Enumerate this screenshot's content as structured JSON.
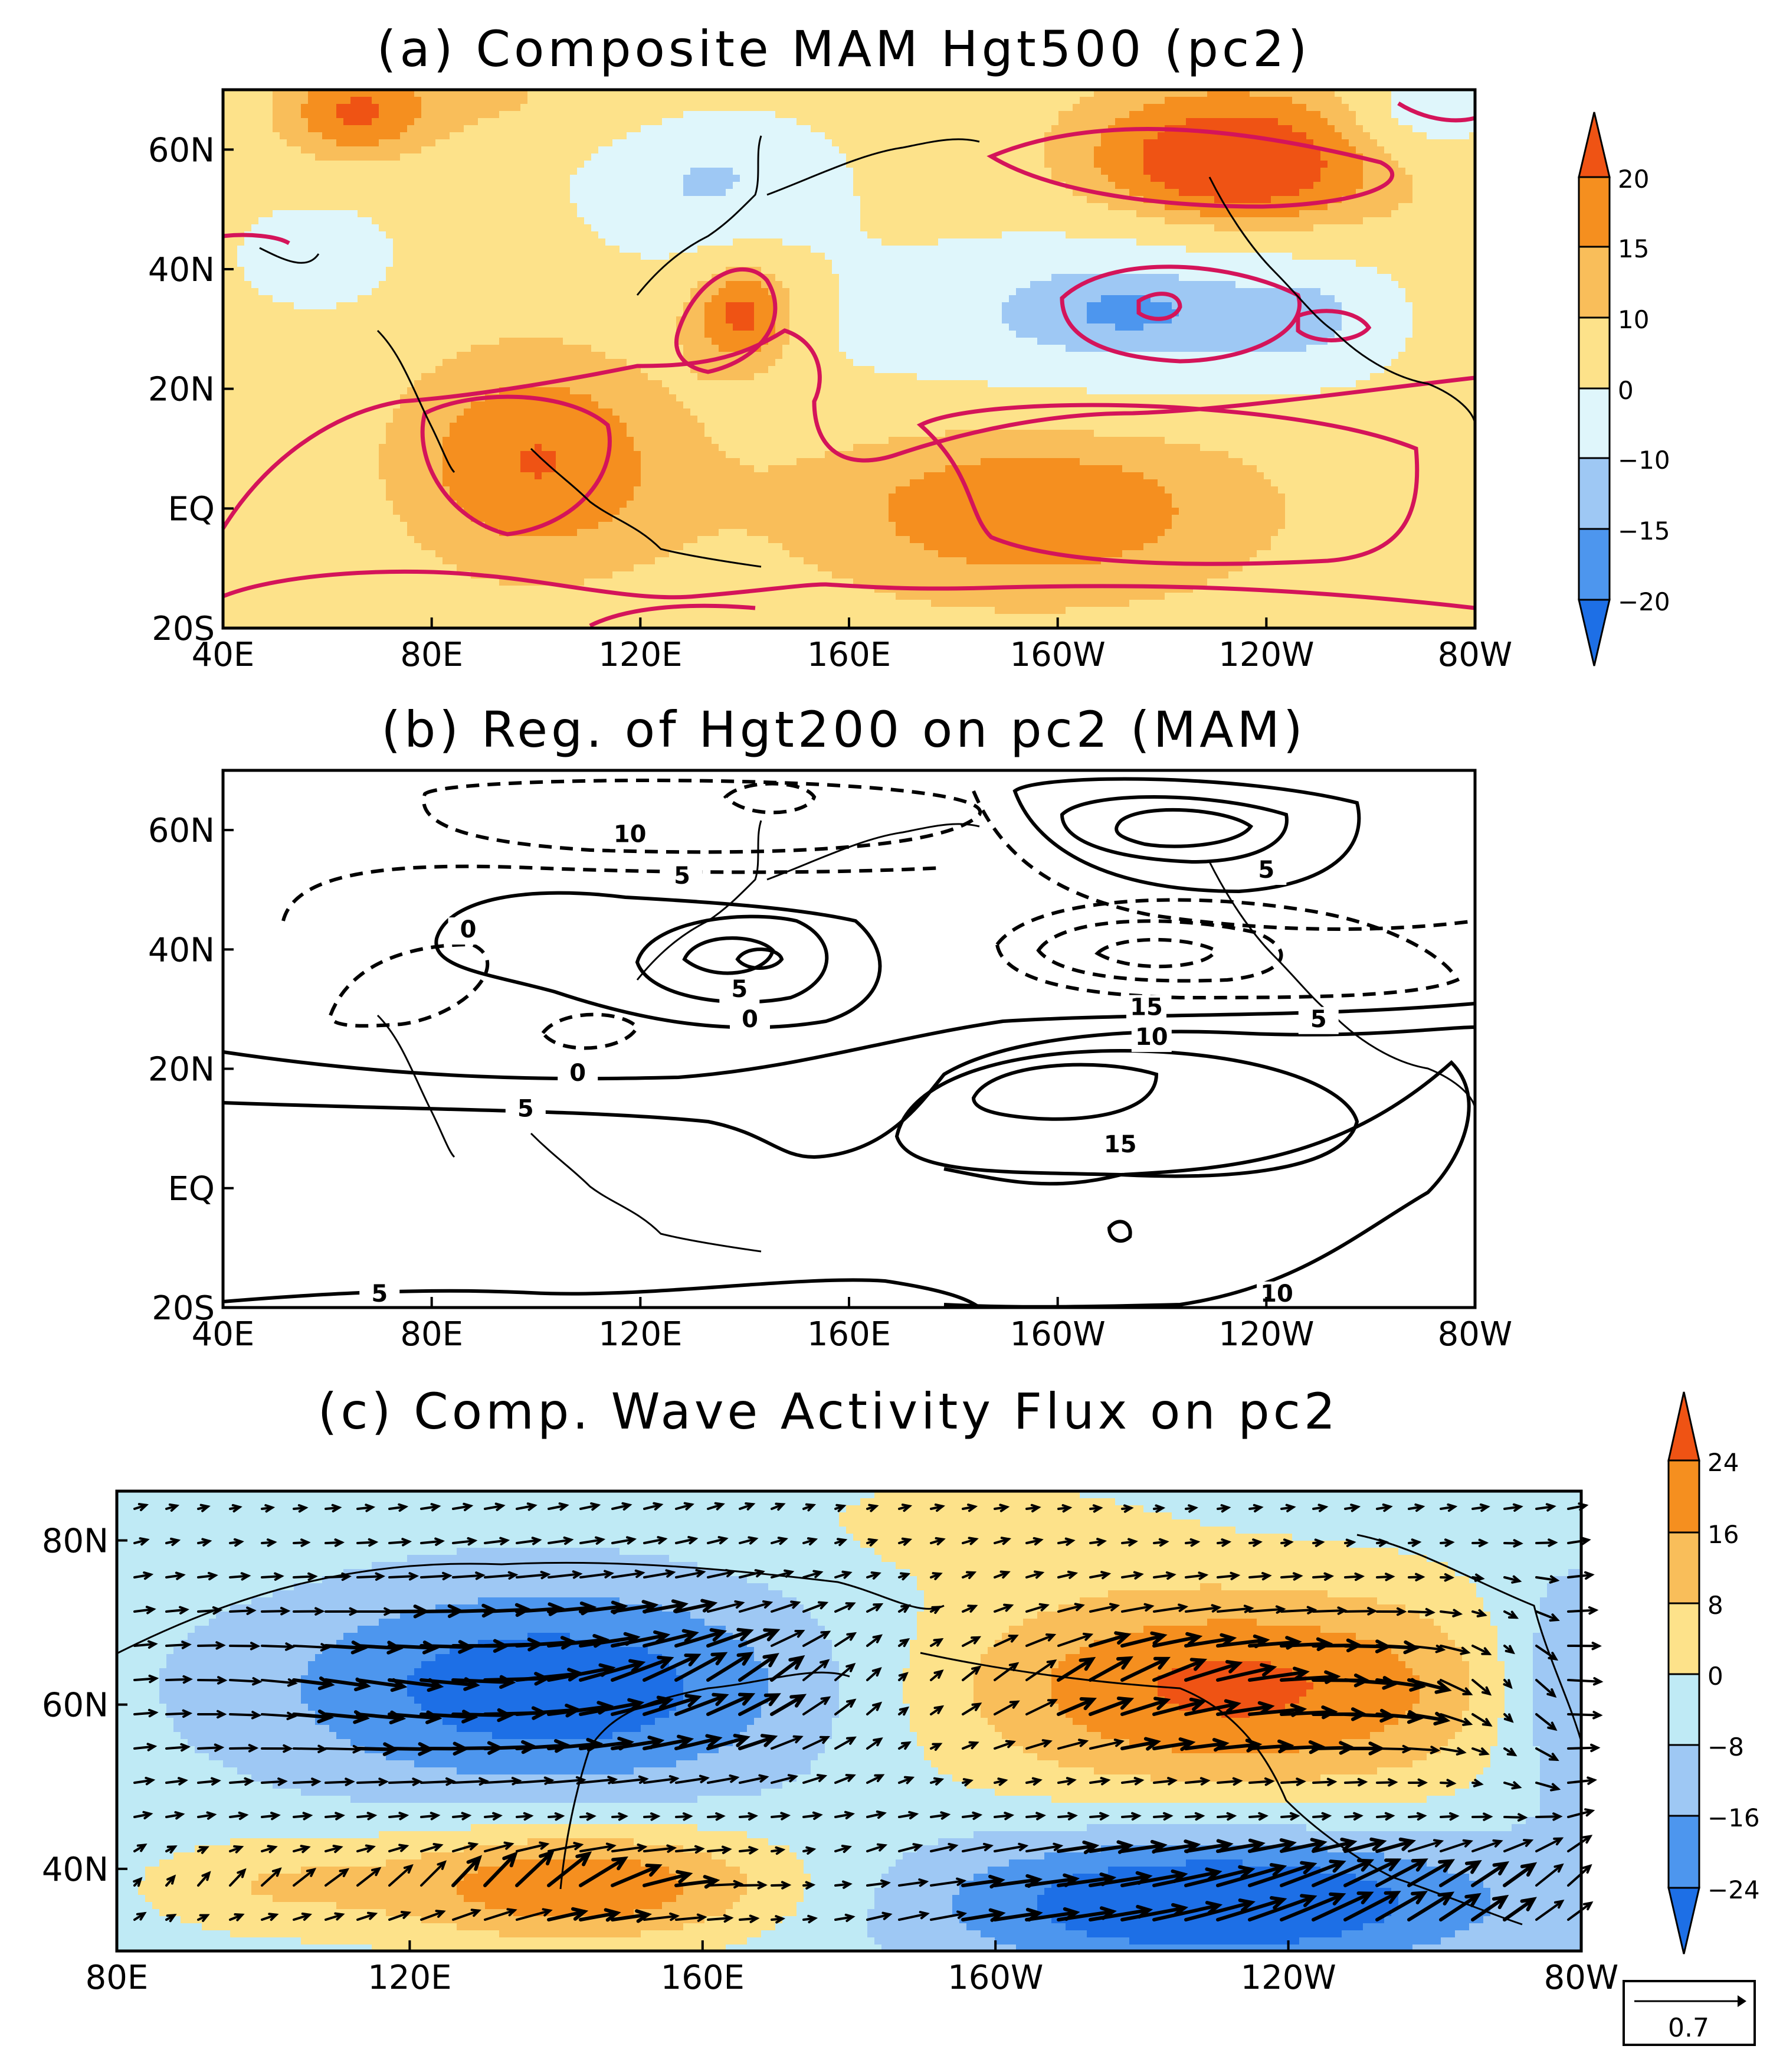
{
  "colors": {
    "neg_dark": "#1d6fe6",
    "neg_mid": "#4d96ee",
    "neg_light": "#9ec8f4",
    "neg_faint": "#dff6fb",
    "pos_faint": "#fde28a",
    "pos_light": "#f9be5a",
    "pos_mid": "#f58f1f",
    "pos_dark": "#ef5314",
    "contour_a": "#d4145a",
    "ocean_c": "#bfeaf5"
  },
  "chart_data": [
    {
      "id": "a",
      "type": "heatmap",
      "title": "(a) Composite MAM Hgt500 (pc2)",
      "x_tick_labels": [
        "40E",
        "80E",
        "120E",
        "160E",
        "160W",
        "120W",
        "80W"
      ],
      "y_tick_labels": [
        "60N",
        "40N",
        "20N",
        "EQ",
        "20S"
      ],
      "xlim_deg_east": [
        40,
        280
      ],
      "ylim_deg": [
        -20,
        70
      ],
      "colorbar_labels": [
        "20",
        "15",
        "10",
        "0",
        "−10",
        "−15",
        "−20"
      ],
      "levels": [
        -20,
        -15,
        -10,
        0,
        10,
        15,
        20
      ],
      "anomaly_centers": [
        {
          "lon": 133,
          "lat": 55,
          "value": -16,
          "sx": 18,
          "sy": 10
        },
        {
          "lon": 233,
          "lat": 57,
          "value": 22,
          "sx": 22,
          "sy": 10
        },
        {
          "lon": 217,
          "lat": 34,
          "value": -20,
          "sx": 22,
          "sy": 10
        },
        {
          "lon": 250,
          "lat": 32,
          "value": -12,
          "sx": 12,
          "sy": 8
        },
        {
          "lon": 140,
          "lat": 33,
          "value": 20,
          "sx": 8,
          "sy": 7
        },
        {
          "lon": 100,
          "lat": 8,
          "value": 15,
          "sx": 20,
          "sy": 14
        },
        {
          "lon": 195,
          "lat": 0,
          "value": 14,
          "sx": 34,
          "sy": 12
        },
        {
          "lon": 58,
          "lat": 42,
          "value": -11,
          "sx": 12,
          "sy": 7
        },
        {
          "lon": 65,
          "lat": 66,
          "value": 13,
          "sx": 10,
          "sy": 6
        },
        {
          "lon": 272,
          "lat": 67,
          "value": -15,
          "sx": 9,
          "sy": 5
        },
        {
          "lon": 175,
          "lat": 30,
          "value": -8,
          "sx": 25,
          "sy": 10
        },
        {
          "lon": 100,
          "lat": 68,
          "value": 6,
          "sx": 30,
          "sy": 6
        }
      ],
      "base_value": 5,
      "significance_contours": "magenta"
    },
    {
      "id": "b",
      "type": "contour",
      "title": "(b) Reg. of Hgt200 on pc2 (MAM)",
      "x_tick_labels": [
        "40E",
        "80E",
        "120E",
        "160E",
        "160W",
        "120W",
        "80W"
      ],
      "y_tick_labels": [
        "60N",
        "40N",
        "20N",
        "EQ",
        "20S"
      ],
      "xlim_deg_east": [
        40,
        280
      ],
      "ylim_deg": [
        -20,
        70
      ],
      "contour_labels": [
        {
          "text": "10",
          "lon": 118,
          "lat": 58
        },
        {
          "text": "5",
          "lon": 128,
          "lat": 51
        },
        {
          "text": "0",
          "lon": 87,
          "lat": 42
        },
        {
          "text": "5",
          "lon": 139,
          "lat": 32
        },
        {
          "text": "0",
          "lon": 141,
          "lat": 27
        },
        {
          "text": "0",
          "lon": 108,
          "lat": 18
        },
        {
          "text": "5",
          "lon": 98,
          "lat": 12
        },
        {
          "text": "5",
          "lon": 240,
          "lat": 52
        },
        {
          "text": "15",
          "lon": 217,
          "lat": 29
        },
        {
          "text": "10",
          "lon": 218,
          "lat": 24
        },
        {
          "text": "5",
          "lon": 250,
          "lat": 27
        },
        {
          "text": "15",
          "lon": 212,
          "lat": 6
        },
        {
          "text": "10",
          "lon": 242,
          "lat": -19
        },
        {
          "text": "5",
          "lon": 70,
          "lat": -19
        }
      ]
    },
    {
      "id": "c",
      "type": "heatmap",
      "title": "(c) Comp. Wave Activity Flux on pc2",
      "x_tick_labels": [
        "80E",
        "120E",
        "160E",
        "160W",
        "120W",
        "80W"
      ],
      "y_tick_labels": [
        "80N",
        "60N",
        "40N"
      ],
      "xlim_deg_east": [
        80,
        280
      ],
      "ylim_deg": [
        30,
        86
      ],
      "colorbar_labels": [
        "24",
        "16",
        "8",
        "0",
        "−8",
        "−16",
        "−24"
      ],
      "levels": [
        -24,
        -16,
        -8,
        0,
        8,
        16,
        24
      ],
      "reference_vector_label": "0.7",
      "anomaly_centers": [
        {
          "lon": 140,
          "lat": 62,
          "value": -26,
          "sx": 28,
          "sy": 9
        },
        {
          "lon": 232,
          "lat": 62,
          "value": 30,
          "sx": 30,
          "sy": 9
        },
        {
          "lon": 143,
          "lat": 38,
          "value": 28,
          "sx": 20,
          "sy": 5
        },
        {
          "lon": 230,
          "lat": 36,
          "value": -30,
          "sx": 28,
          "sy": 6
        },
        {
          "lon": 278,
          "lat": 62,
          "value": -18,
          "sx": 8,
          "sy": 10
        },
        {
          "lon": 100,
          "lat": 38,
          "value": 10,
          "sx": 12,
          "sy": 4
        },
        {
          "lon": 195,
          "lat": 82,
          "value": 6,
          "sx": 20,
          "sy": 5
        },
        {
          "lon": 95,
          "lat": 82,
          "value": 4,
          "sx": 12,
          "sy": 4
        }
      ],
      "base_value": -4
    }
  ]
}
